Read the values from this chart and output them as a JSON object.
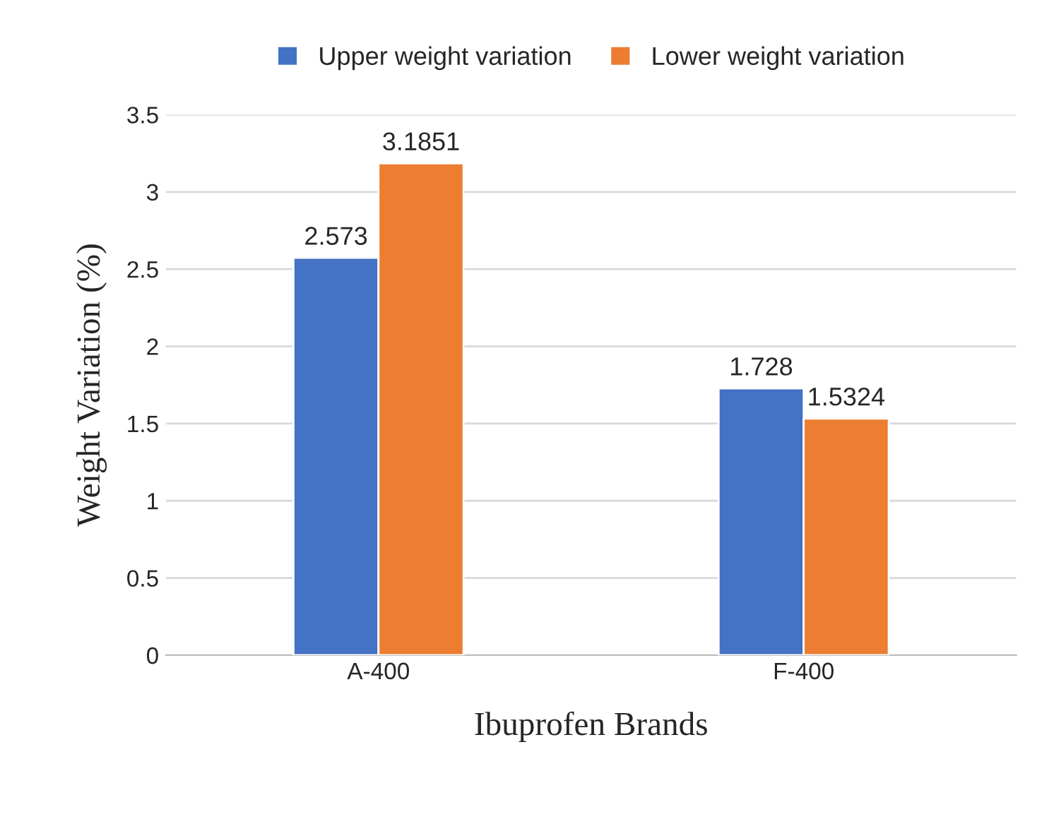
{
  "chart_data": {
    "type": "bar",
    "xlabel": "Ibuprofen Brands",
    "ylabel": "Weight Variation (%)",
    "categories": [
      "A-400",
      "F-400"
    ],
    "series": [
      {
        "name": "Upper weight variation",
        "color": "#4472c4",
        "values": [
          2.573,
          1.728
        ]
      },
      {
        "name": "Lower weight variation",
        "color": "#ed7d31",
        "values": [
          3.1851,
          1.5324
        ]
      }
    ],
    "ylim": [
      0,
      3.5
    ],
    "yticks": [
      0,
      0.5,
      1,
      1.5,
      2,
      2.5,
      3,
      3.5
    ],
    "grid": "y",
    "legend": "top",
    "data_labels": true
  }
}
